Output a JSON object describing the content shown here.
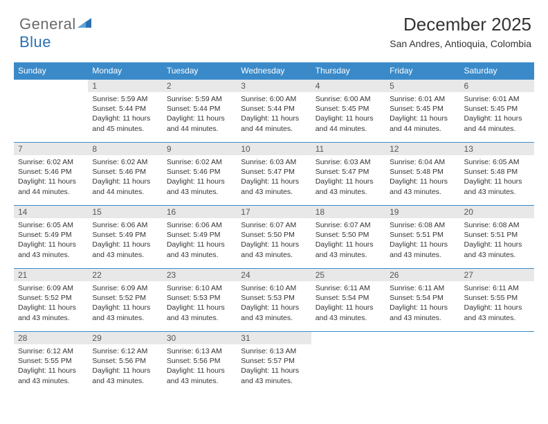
{
  "logo": {
    "text1": "General",
    "text2": "Blue"
  },
  "header": {
    "title": "December 2025",
    "subtitle": "San Andres, Antioquia, Colombia"
  },
  "weekdays": [
    "Sunday",
    "Monday",
    "Tuesday",
    "Wednesday",
    "Thursday",
    "Friday",
    "Saturday"
  ],
  "colors": {
    "header_bg": "#3a8ac9",
    "header_fg": "#ffffff",
    "daynum_bg": "#e8e8e8",
    "rule": "#3a8ac9",
    "text": "#333333",
    "logo_gray": "#6a6a6a",
    "logo_blue": "#2a6fb3"
  },
  "start_weekday": 1,
  "days": [
    {
      "n": 1,
      "sunrise": "5:59 AM",
      "sunset": "5:44 PM",
      "daylight": "11 hours and 45 minutes."
    },
    {
      "n": 2,
      "sunrise": "5:59 AM",
      "sunset": "5:44 PM",
      "daylight": "11 hours and 44 minutes."
    },
    {
      "n": 3,
      "sunrise": "6:00 AM",
      "sunset": "5:44 PM",
      "daylight": "11 hours and 44 minutes."
    },
    {
      "n": 4,
      "sunrise": "6:00 AM",
      "sunset": "5:45 PM",
      "daylight": "11 hours and 44 minutes."
    },
    {
      "n": 5,
      "sunrise": "6:01 AM",
      "sunset": "5:45 PM",
      "daylight": "11 hours and 44 minutes."
    },
    {
      "n": 6,
      "sunrise": "6:01 AM",
      "sunset": "5:45 PM",
      "daylight": "11 hours and 44 minutes."
    },
    {
      "n": 7,
      "sunrise": "6:02 AM",
      "sunset": "5:46 PM",
      "daylight": "11 hours and 44 minutes."
    },
    {
      "n": 8,
      "sunrise": "6:02 AM",
      "sunset": "5:46 PM",
      "daylight": "11 hours and 44 minutes."
    },
    {
      "n": 9,
      "sunrise": "6:02 AM",
      "sunset": "5:46 PM",
      "daylight": "11 hours and 43 minutes."
    },
    {
      "n": 10,
      "sunrise": "6:03 AM",
      "sunset": "5:47 PM",
      "daylight": "11 hours and 43 minutes."
    },
    {
      "n": 11,
      "sunrise": "6:03 AM",
      "sunset": "5:47 PM",
      "daylight": "11 hours and 43 minutes."
    },
    {
      "n": 12,
      "sunrise": "6:04 AM",
      "sunset": "5:48 PM",
      "daylight": "11 hours and 43 minutes."
    },
    {
      "n": 13,
      "sunrise": "6:05 AM",
      "sunset": "5:48 PM",
      "daylight": "11 hours and 43 minutes."
    },
    {
      "n": 14,
      "sunrise": "6:05 AM",
      "sunset": "5:49 PM",
      "daylight": "11 hours and 43 minutes."
    },
    {
      "n": 15,
      "sunrise": "6:06 AM",
      "sunset": "5:49 PM",
      "daylight": "11 hours and 43 minutes."
    },
    {
      "n": 16,
      "sunrise": "6:06 AM",
      "sunset": "5:49 PM",
      "daylight": "11 hours and 43 minutes."
    },
    {
      "n": 17,
      "sunrise": "6:07 AM",
      "sunset": "5:50 PM",
      "daylight": "11 hours and 43 minutes."
    },
    {
      "n": 18,
      "sunrise": "6:07 AM",
      "sunset": "5:50 PM",
      "daylight": "11 hours and 43 minutes."
    },
    {
      "n": 19,
      "sunrise": "6:08 AM",
      "sunset": "5:51 PM",
      "daylight": "11 hours and 43 minutes."
    },
    {
      "n": 20,
      "sunrise": "6:08 AM",
      "sunset": "5:51 PM",
      "daylight": "11 hours and 43 minutes."
    },
    {
      "n": 21,
      "sunrise": "6:09 AM",
      "sunset": "5:52 PM",
      "daylight": "11 hours and 43 minutes."
    },
    {
      "n": 22,
      "sunrise": "6:09 AM",
      "sunset": "5:52 PM",
      "daylight": "11 hours and 43 minutes."
    },
    {
      "n": 23,
      "sunrise": "6:10 AM",
      "sunset": "5:53 PM",
      "daylight": "11 hours and 43 minutes."
    },
    {
      "n": 24,
      "sunrise": "6:10 AM",
      "sunset": "5:53 PM",
      "daylight": "11 hours and 43 minutes."
    },
    {
      "n": 25,
      "sunrise": "6:11 AM",
      "sunset": "5:54 PM",
      "daylight": "11 hours and 43 minutes."
    },
    {
      "n": 26,
      "sunrise": "6:11 AM",
      "sunset": "5:54 PM",
      "daylight": "11 hours and 43 minutes."
    },
    {
      "n": 27,
      "sunrise": "6:11 AM",
      "sunset": "5:55 PM",
      "daylight": "11 hours and 43 minutes."
    },
    {
      "n": 28,
      "sunrise": "6:12 AM",
      "sunset": "5:55 PM",
      "daylight": "11 hours and 43 minutes."
    },
    {
      "n": 29,
      "sunrise": "6:12 AM",
      "sunset": "5:56 PM",
      "daylight": "11 hours and 43 minutes."
    },
    {
      "n": 30,
      "sunrise": "6:13 AM",
      "sunset": "5:56 PM",
      "daylight": "11 hours and 43 minutes."
    },
    {
      "n": 31,
      "sunrise": "6:13 AM",
      "sunset": "5:57 PM",
      "daylight": "11 hours and 43 minutes."
    }
  ],
  "labels": {
    "sunrise": "Sunrise:",
    "sunset": "Sunset:",
    "daylight": "Daylight:"
  }
}
